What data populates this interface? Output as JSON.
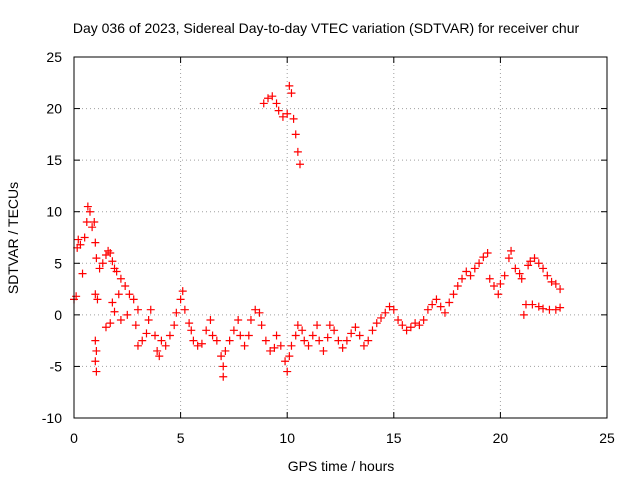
{
  "chart_data": {
    "type": "scatter",
    "title": "Day 036 of 2023, Sidereal Day-to-day VTEC variation (SDTVAR) for receiver chur",
    "xlabel": "GPS time / hours",
    "ylabel": "SDTVAR / TECUs",
    "xlim": [
      0,
      25
    ],
    "ylim": [
      -10,
      25
    ],
    "xticks": [
      0,
      5,
      10,
      15,
      20,
      25
    ],
    "yticks": [
      -10,
      -5,
      0,
      5,
      10,
      15,
      20,
      25
    ],
    "grid": true,
    "marker": "+",
    "color": "#ff0000",
    "series": [
      {
        "name": "SDTVAR",
        "points": [
          [
            0.0,
            1.5
          ],
          [
            0.1,
            1.8
          ],
          [
            0.15,
            6.5
          ],
          [
            0.2,
            7.3
          ],
          [
            0.3,
            6.8
          ],
          [
            0.4,
            4.0
          ],
          [
            0.5,
            7.5
          ],
          [
            0.6,
            9.0
          ],
          [
            0.65,
            10.5
          ],
          [
            0.75,
            10.0
          ],
          [
            0.85,
            8.5
          ],
          [
            0.95,
            9.0
          ],
          [
            1.0,
            7.0
          ],
          [
            1.05,
            5.5
          ],
          [
            1.0,
            2.0
          ],
          [
            1.1,
            1.5
          ],
          [
            1.2,
            4.5
          ],
          [
            1.35,
            5.0
          ],
          [
            1.5,
            5.8
          ],
          [
            1.6,
            6.2
          ],
          [
            1.7,
            6.0
          ],
          [
            1.8,
            5.2
          ],
          [
            1.9,
            4.5
          ],
          [
            2.0,
            4.2
          ],
          [
            2.2,
            3.5
          ],
          [
            2.4,
            2.8
          ],
          [
            2.6,
            2.0
          ],
          [
            2.8,
            1.5
          ],
          [
            3.0,
            0.5
          ],
          [
            2.5,
            0.0
          ],
          [
            2.2,
            -0.5
          ],
          [
            1.9,
            0.3
          ],
          [
            1.7,
            -0.8
          ],
          [
            1.5,
            -1.2
          ],
          [
            1.8,
            1.2
          ],
          [
            2.1,
            2.0
          ],
          [
            1.0,
            -2.5
          ],
          [
            1.05,
            -3.5
          ],
          [
            1.0,
            -4.5
          ],
          [
            1.05,
            -5.5
          ],
          [
            2.9,
            -1.0
          ],
          [
            3.0,
            -3.0
          ],
          [
            3.2,
            -2.5
          ],
          [
            3.4,
            -1.8
          ],
          [
            3.5,
            -0.5
          ],
          [
            3.6,
            0.5
          ],
          [
            3.8,
            -2.0
          ],
          [
            3.9,
            -3.5
          ],
          [
            4.0,
            -4.0
          ],
          [
            4.1,
            -2.5
          ],
          [
            4.3,
            -3.0
          ],
          [
            4.5,
            -2.0
          ],
          [
            4.7,
            -1.0
          ],
          [
            4.8,
            0.2
          ],
          [
            5.0,
            1.5
          ],
          [
            5.1,
            2.3
          ],
          [
            5.2,
            0.5
          ],
          [
            5.4,
            -0.8
          ],
          [
            5.5,
            -1.5
          ],
          [
            5.6,
            -2.5
          ],
          [
            5.8,
            -3.0
          ],
          [
            6.0,
            -2.8
          ],
          [
            6.2,
            -1.5
          ],
          [
            6.4,
            -0.5
          ],
          [
            6.5,
            -2.0
          ],
          [
            6.7,
            -2.5
          ],
          [
            6.9,
            -4.0
          ],
          [
            7.0,
            -5.0
          ],
          [
            7.0,
            -6.0
          ],
          [
            7.1,
            -3.5
          ],
          [
            7.3,
            -2.5
          ],
          [
            7.5,
            -1.5
          ],
          [
            7.7,
            -0.5
          ],
          [
            7.8,
            -2.0
          ],
          [
            8.0,
            -3.0
          ],
          [
            8.2,
            -2.0
          ],
          [
            8.3,
            -0.5
          ],
          [
            8.5,
            0.5
          ],
          [
            8.7,
            0.2
          ],
          [
            8.8,
            -1.0
          ],
          [
            9.0,
            -2.5
          ],
          [
            9.2,
            -3.5
          ],
          [
            9.4,
            -3.2
          ],
          [
            9.5,
            -2.0
          ],
          [
            9.7,
            -3.0
          ],
          [
            9.9,
            -4.5
          ],
          [
            10.0,
            -5.5
          ],
          [
            10.1,
            -4.0
          ],
          [
            10.2,
            -3.0
          ],
          [
            10.4,
            -2.0
          ],
          [
            10.5,
            -1.0
          ],
          [
            10.7,
            -1.5
          ],
          [
            10.8,
            -2.5
          ],
          [
            11.0,
            -3.0
          ],
          [
            11.2,
            -2.0
          ],
          [
            11.4,
            -1.0
          ],
          [
            11.5,
            -2.5
          ],
          [
            11.7,
            -3.5
          ],
          [
            11.9,
            -2.2
          ],
          [
            12.0,
            -1.0
          ],
          [
            12.2,
            -1.5
          ],
          [
            12.4,
            -2.5
          ],
          [
            12.6,
            -3.2
          ],
          [
            12.8,
            -2.5
          ],
          [
            13.0,
            -1.8
          ],
          [
            13.2,
            -1.2
          ],
          [
            13.4,
            -2.0
          ],
          [
            13.6,
            -3.0
          ],
          [
            13.8,
            -2.5
          ],
          [
            14.0,
            -1.5
          ],
          [
            14.2,
            -0.8
          ],
          [
            14.4,
            -0.3
          ],
          [
            14.6,
            0.2
          ],
          [
            14.8,
            0.8
          ],
          [
            15.0,
            0.5
          ],
          [
            15.2,
            -0.5
          ],
          [
            15.4,
            -1.0
          ],
          [
            8.9,
            20.5
          ],
          [
            9.1,
            21.0
          ],
          [
            9.3,
            21.2
          ],
          [
            9.5,
            20.5
          ],
          [
            9.6,
            19.8
          ],
          [
            9.8,
            19.2
          ],
          [
            10.0,
            19.5
          ],
          [
            10.1,
            22.2
          ],
          [
            10.2,
            21.5
          ],
          [
            10.3,
            19.0
          ],
          [
            10.4,
            17.5
          ],
          [
            10.5,
            15.8
          ],
          [
            10.6,
            14.6
          ],
          [
            15.6,
            -1.5
          ],
          [
            15.8,
            -1.2
          ],
          [
            16.0,
            -0.8
          ],
          [
            16.2,
            -1.0
          ],
          [
            16.4,
            -0.5
          ],
          [
            16.6,
            0.5
          ],
          [
            16.8,
            1.0
          ],
          [
            17.0,
            1.5
          ],
          [
            17.2,
            0.8
          ],
          [
            17.4,
            0.2
          ],
          [
            17.6,
            1.2
          ],
          [
            17.8,
            2.0
          ],
          [
            18.0,
            2.8
          ],
          [
            18.2,
            3.5
          ],
          [
            18.4,
            4.2
          ],
          [
            18.6,
            3.8
          ],
          [
            18.8,
            4.5
          ],
          [
            19.0,
            5.0
          ],
          [
            19.2,
            5.6
          ],
          [
            19.4,
            6.0
          ],
          [
            19.5,
            3.5
          ],
          [
            19.7,
            2.8
          ],
          [
            19.9,
            2.0
          ],
          [
            20.0,
            3.0
          ],
          [
            20.2,
            3.8
          ],
          [
            20.4,
            5.5
          ],
          [
            20.5,
            6.2
          ],
          [
            20.7,
            4.5
          ],
          [
            20.9,
            4.0
          ],
          [
            21.0,
            3.5
          ],
          [
            21.1,
            0.0
          ],
          [
            21.2,
            1.0
          ],
          [
            21.3,
            4.8
          ],
          [
            21.4,
            5.2
          ],
          [
            21.6,
            5.5
          ],
          [
            21.8,
            5.0
          ],
          [
            22.0,
            4.5
          ],
          [
            22.2,
            3.8
          ],
          [
            22.4,
            3.2
          ],
          [
            22.6,
            3.0
          ],
          [
            22.8,
            2.5
          ],
          [
            21.5,
            1.0
          ],
          [
            21.8,
            0.8
          ],
          [
            22.0,
            0.6
          ],
          [
            22.3,
            0.5
          ],
          [
            22.6,
            0.5
          ],
          [
            22.8,
            0.7
          ]
        ]
      }
    ]
  }
}
